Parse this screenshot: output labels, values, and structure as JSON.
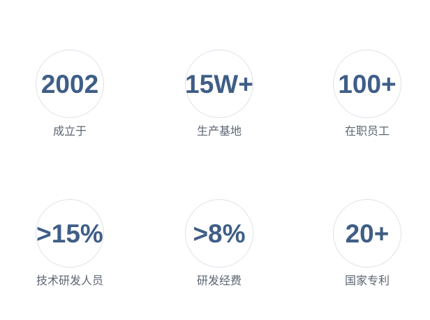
{
  "colors": {
    "background": "#ffffff",
    "stat_value": "#3f5e87",
    "stat_label": "#5b6572",
    "circle_border": "#dce2ea"
  },
  "stats": [
    {
      "value": "2002",
      "label": "成立于"
    },
    {
      "value": "15W+",
      "label": "生产基地"
    },
    {
      "value": "100+",
      "label": "在职员工"
    },
    {
      "value": ">15%",
      "label": "技术研发人员"
    },
    {
      "value": ">8%",
      "label": "研发经费"
    },
    {
      "value": "20+",
      "label": "国家专利"
    }
  ]
}
